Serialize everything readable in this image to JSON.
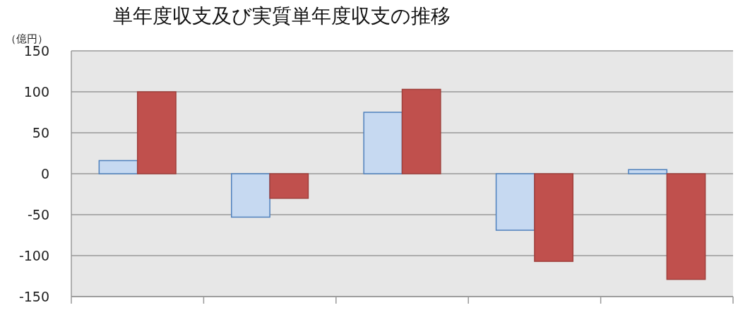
{
  "chart_data": {
    "type": "bar",
    "title": "単年度収支及び実質単年度収支の推移",
    "ylabel": "（億円）",
    "categories": [
      null,
      null,
      null,
      null,
      null
    ],
    "series": [
      {
        "color": "#c6d9f1",
        "values": [
          16,
          -53,
          75,
          -69,
          5
        ]
      },
      {
        "color": "#c0504d",
        "values": [
          100,
          -30,
          103,
          -107,
          -129
        ]
      }
    ],
    "ylim": [
      -150,
      150
    ],
    "yticks": [
      -150,
      -100,
      -50,
      0,
      50,
      100,
      150
    ],
    "grid": "y"
  }
}
